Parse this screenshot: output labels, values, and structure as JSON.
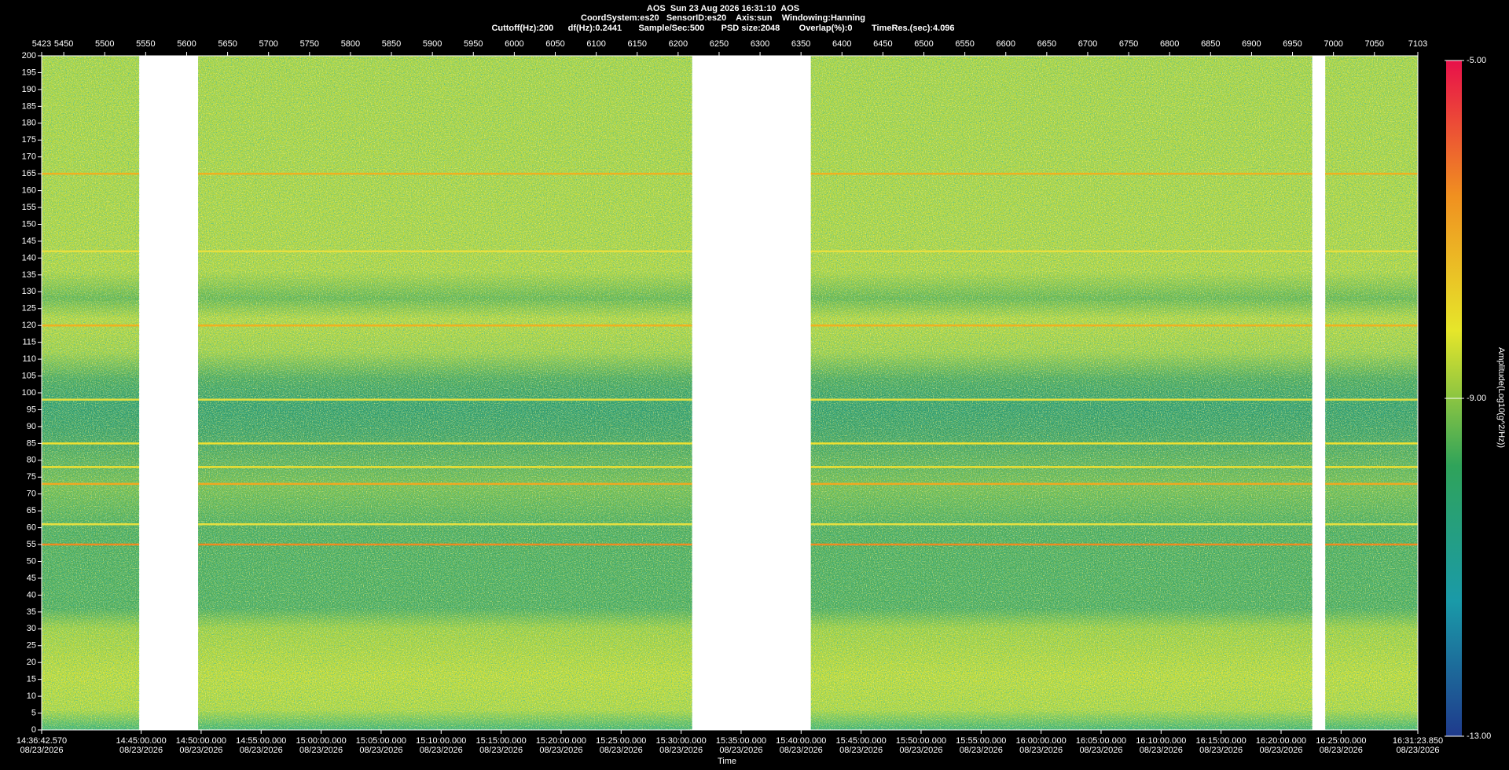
{
  "chart_data": {
    "type": "spectrogram",
    "header": [
      "AOS  Sun 23 Aug 2026 16:31:10  AOS",
      "CoordSystem:es20   SensorID:es20    Axis:sun    Windowing:Hanning",
      "Cuttoff(Hz):200      df(Hz):0.2441       Sample/Sec:500       PSD size:2048        Overlap(%):0        TimeRes.(sec):4.096"
    ],
    "xlabel": "Time",
    "clabel": "Amplitude(Log10(g^2/Hz))",
    "x2lim": [
      5423,
      7103
    ],
    "x2ticks": [
      5423,
      5450,
      5500,
      5550,
      5600,
      5650,
      5700,
      5750,
      5800,
      5850,
      5900,
      5950,
      6000,
      6050,
      6100,
      6150,
      6200,
      6250,
      6300,
      6350,
      6400,
      6450,
      6500,
      6550,
      6600,
      6650,
      6700,
      6750,
      6800,
      6850,
      6900,
      6950,
      7000,
      7050,
      7103
    ],
    "xlim": [
      "2026-08-23T14:36:42.570Z",
      "2026-08-23T16:31:23.850Z"
    ],
    "xticks": [
      {
        "value": "2026-08-23T14:36:42.570Z",
        "label": [
          "14:36:42.570",
          "08/23/2026"
        ]
      },
      {
        "value": "2026-08-23T14:45:00.000Z",
        "label": [
          "14:45:00.000",
          "08/23/2026"
        ]
      },
      {
        "value": "2026-08-23T14:50:00.000Z",
        "label": [
          "14:50:00.000",
          "08/23/2026"
        ]
      },
      {
        "value": "2026-08-23T14:55:00.000Z",
        "label": [
          "14:55:00.000",
          "08/23/2026"
        ]
      },
      {
        "value": "2026-08-23T15:00:00.000Z",
        "label": [
          "15:00:00.000",
          "08/23/2026"
        ]
      },
      {
        "value": "2026-08-23T15:05:00.000Z",
        "label": [
          "15:05:00.000",
          "08/23/2026"
        ]
      },
      {
        "value": "2026-08-23T15:10:00.000Z",
        "label": [
          "15:10:00.000",
          "08/23/2026"
        ]
      },
      {
        "value": "2026-08-23T15:15:00.000Z",
        "label": [
          "15:15:00.000",
          "08/23/2026"
        ]
      },
      {
        "value": "2026-08-23T15:20:00.000Z",
        "label": [
          "15:20:00.000",
          "08/23/2026"
        ]
      },
      {
        "value": "2026-08-23T15:25:00.000Z",
        "label": [
          "15:25:00.000",
          "08/23/2026"
        ]
      },
      {
        "value": "2026-08-23T15:30:00.000Z",
        "label": [
          "15:30:00.000",
          "08/23/2026"
        ]
      },
      {
        "value": "2026-08-23T15:35:00.000Z",
        "label": [
          "15:35:00.000",
          "08/23/2026"
        ]
      },
      {
        "value": "2026-08-23T15:40:00.000Z",
        "label": [
          "15:40:00.000",
          "08/23/2026"
        ]
      },
      {
        "value": "2026-08-23T15:45:00.000Z",
        "label": [
          "15:45:00.000",
          "08/23/2026"
        ]
      },
      {
        "value": "2026-08-23T15:50:00.000Z",
        "label": [
          "15:50:00.000",
          "08/23/2026"
        ]
      },
      {
        "value": "2026-08-23T15:55:00.000Z",
        "label": [
          "15:55:00.000",
          "08/23/2026"
        ]
      },
      {
        "value": "2026-08-23T16:00:00.000Z",
        "label": [
          "16:00:00.000",
          "08/23/2026"
        ]
      },
      {
        "value": "2026-08-23T16:05:00.000Z",
        "label": [
          "16:05:00.000",
          "08/23/2026"
        ]
      },
      {
        "value": "2026-08-23T16:10:00.000Z",
        "label": [
          "16:10:00.000",
          "08/23/2026"
        ]
      },
      {
        "value": "2026-08-23T16:15:00.000Z",
        "label": [
          "16:15:00.000",
          "08/23/2026"
        ]
      },
      {
        "value": "2026-08-23T16:20:00.000Z",
        "label": [
          "16:20:00.000",
          "08/23/2026"
        ]
      },
      {
        "value": "2026-08-23T16:25:00.000Z",
        "label": [
          "16:25:00.000",
          "08/23/2026"
        ]
      },
      {
        "value": "2026-08-23T16:31:23.850Z",
        "label": [
          "16:31:23.850",
          "08/23/2026"
        ]
      }
    ],
    "ylim": [
      0,
      200
    ],
    "yticks": [
      0,
      5,
      10,
      15,
      20,
      25,
      30,
      35,
      40,
      45,
      50,
      55,
      60,
      65,
      70,
      75,
      80,
      85,
      90,
      95,
      100,
      105,
      110,
      115,
      120,
      125,
      130,
      135,
      140,
      145,
      150,
      155,
      160,
      165,
      170,
      175,
      180,
      185,
      190,
      195,
      200
    ],
    "clim": [
      -13,
      -5
    ],
    "cticks": [
      {
        "value": -5,
        "label": "-5.00"
      },
      {
        "value": -9,
        "label": "-9.00"
      },
      {
        "value": -13,
        "label": "-13.00"
      }
    ],
    "colormap": [
      "#1f3a8c",
      "#1a9aa8",
      "#2fa35a",
      "#e6e62a",
      "#f09020",
      "#e8104a"
    ],
    "segments": [
      [
        5423,
        5542
      ],
      [
        5614,
        6217
      ],
      [
        6362,
        6974
      ],
      [
        6990,
        7103
      ]
    ],
    "tonal_lines": [
      {
        "freq": 165,
        "color": "#f0b020"
      },
      {
        "freq": 142,
        "color": "#e6e040"
      },
      {
        "freq": 120,
        "color": "#f0b020"
      },
      {
        "freq": 98,
        "color": "#e6e040"
      },
      {
        "freq": 85,
        "color": "#f0e030"
      },
      {
        "freq": 78,
        "color": "#f0e030"
      },
      {
        "freq": 73,
        "color": "#f0a820"
      },
      {
        "freq": 61,
        "color": "#e6e040"
      },
      {
        "freq": 55,
        "color": "#f08a20"
      }
    ]
  }
}
